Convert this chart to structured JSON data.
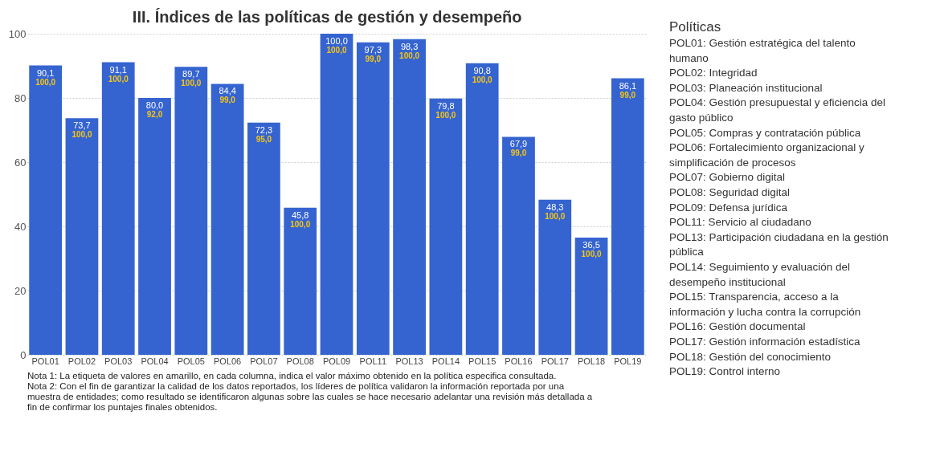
{
  "chart_data": [
    {
      "type": "bar",
      "title": "III. Índices de las políticas de gestión y desempeño",
      "categories": [
        "POL01",
        "POL02",
        "POL03",
        "POL04",
        "POL05",
        "POL06",
        "POL07",
        "POL08",
        "POL09",
        "POL11",
        "POL13",
        "POL14",
        "POL15",
        "POL16",
        "POL17",
        "POL18",
        "POL19"
      ],
      "values": [
        90.1,
        73.7,
        91.1,
        80.0,
        89.7,
        84.4,
        72.3,
        45.8,
        100.0,
        97.3,
        98.3,
        79.8,
        90.8,
        67.9,
        48.3,
        36.5,
        86.1
      ],
      "value_labels": [
        "90,1",
        "73,7",
        "91,1",
        "80,0",
        "89,7",
        "84,4",
        "72,3",
        "45,8",
        "100,0",
        "97,3",
        "98,3",
        "79,8",
        "90,8",
        "67,9",
        "48,3",
        "36,5",
        "86,1"
      ],
      "color": "#3564d0",
      "ylim": [
        0,
        100
      ],
      "yticks": [
        0,
        20,
        40,
        60,
        80,
        100
      ],
      "grid": "y",
      "annotations": [
        {
          "text": "100,0",
          "x": "POL01",
          "y": 90.1
        },
        {
          "text": "100,0",
          "x": "POL02",
          "y": 73.7
        },
        {
          "text": "100,0",
          "x": "POL03",
          "y": 91.1
        },
        {
          "text": "92,0",
          "x": "POL04",
          "y": 80.0
        },
        {
          "text": "100,0",
          "x": "POL05",
          "y": 89.7
        },
        {
          "text": "99,0",
          "x": "POL06",
          "y": 84.4
        },
        {
          "text": "95,0",
          "x": "POL07",
          "y": 72.3
        },
        {
          "text": "100,0",
          "x": "POL08",
          "y": 45.8
        },
        {
          "text": "100,0",
          "x": "POL09",
          "y": 100.0
        },
        {
          "text": "99,0",
          "x": "POL11",
          "y": 97.3
        },
        {
          "text": "100,0",
          "x": "POL13",
          "y": 98.3
        },
        {
          "text": "100,0",
          "x": "POL14",
          "y": 79.8
        },
        {
          "text": "100,0",
          "x": "POL15",
          "y": 90.8
        },
        {
          "text": "99,0",
          "x": "POL16",
          "y": 67.9
        },
        {
          "text": "100,0",
          "x": "POL17",
          "y": 48.3
        },
        {
          "text": "100,0",
          "x": "POL18",
          "y": 36.5
        },
        {
          "text": "99,0",
          "x": "POL19",
          "y": 86.1
        },
        "Nota 1: La etiqueta de valores en amarillo, en cada columna, indica el valor máximo obtenido en la política especifica consultada.",
        "Nota 2: Con el fin de garantizar la calidad de los datos reportados, los líderes de política validaron la información reportada por una muestra de entidades; como resultado se identificaron algunas sobre las cuales se hace necesario adelantar una revisión más detallada a fin de confirmar los puntajes finales obtenidos."
      ]
    },
    {
      "type": "other",
      "title": "Políticas",
      "annotations": [
        "POL01: Gestión estratégica del talento humano",
        "POL02: Integridad",
        "POL03: Planeación institucional",
        "POL04: Gestión presupuestal y eficiencia del gasto público",
        "POL05: Compras y contratación pública",
        "POL06: Fortalecimiento organizacional y simplificación de procesos",
        "POL07: Gobierno digital",
        "POL08: Seguridad digital",
        "POL09: Defensa jurídica",
        "POL11: Servicio al ciudadano",
        "POL13: Participación ciudadana en la gestión pública",
        "POL14: Seguimiento y evaluación del desempeño institucional",
        "POL15: Transparencia, acceso a la información y lucha contra la corrupción",
        "POL16: Gestión documental",
        "POL17: Gestión información estadística",
        "POL18: Gestión del conocimiento",
        "POL19: Control interno"
      ]
    }
  ]
}
